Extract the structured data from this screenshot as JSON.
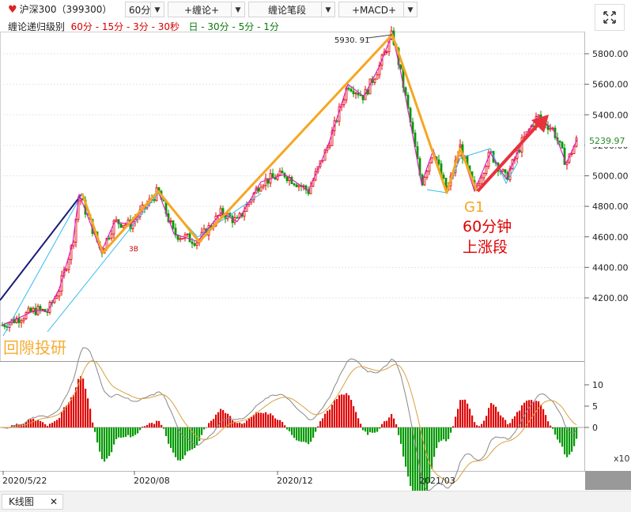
{
  "toolbar": {
    "symbol": "沪深300（399300）",
    "period": "60分",
    "btn_chanlun": "+缠论+",
    "btn_bidduan": "缠论笔段",
    "btn_macd": "+MACD+"
  },
  "level_row": {
    "label": "缠论递归级别",
    "red_part": "60分 - 15分 - 3分 - 30秒",
    "green_part": "日 - 30分 - 5分 - 1分"
  },
  "colors": {
    "up": "#e00000",
    "down": "#009900",
    "segment": "#f5a623",
    "trend": "#1a1a7a",
    "channel": "#33bbee",
    "arrow": "#e8323c",
    "dif": "#888888",
    "dea": "#d9a040"
  },
  "annotations": {
    "peak_label": "5930. 91",
    "label_3b": "3B",
    "label_g1": "G1",
    "note_line1": "60分钟",
    "note_line2": "上涨段",
    "watermark": "回隙投研",
    "last_price": "5239.97"
  },
  "chart_data": [
    {
      "type": "candlestick",
      "title": "沪深300（399300）60分",
      "y_ticks": [
        4200,
        4400,
        4600,
        4800,
        5000,
        5200,
        5400,
        5600,
        5800
      ],
      "ylim": [
        3990,
        5960
      ],
      "x_ticks": [
        "2020/5/22",
        "2020/08",
        "2020/12",
        "2021/03"
      ],
      "peak": 5930.91,
      "last_price": 5239.97,
      "segment_path": [
        {
          "x": "2020/7",
          "y": 4880
        },
        {
          "x": "2020/7",
          "y": 4500
        },
        {
          "x": "2020/8",
          "y": 4900
        },
        {
          "x": "2020/9",
          "y": 4570
        },
        {
          "x": "2021/2",
          "y": 5930
        },
        {
          "x": "2021/3",
          "y": 4890
        },
        {
          "x": "2021/3",
          "y": 5190
        },
        {
          "x": "2021/3",
          "y": 4900
        }
      ]
    },
    {
      "type": "bar",
      "title": "MACD",
      "y_ticks": [
        0,
        5,
        10
      ],
      "ylim": [
        -20,
        16
      ],
      "scale_label": "x10"
    }
  ],
  "bottom": {
    "tab_label": "K线图",
    "close": "✕"
  }
}
